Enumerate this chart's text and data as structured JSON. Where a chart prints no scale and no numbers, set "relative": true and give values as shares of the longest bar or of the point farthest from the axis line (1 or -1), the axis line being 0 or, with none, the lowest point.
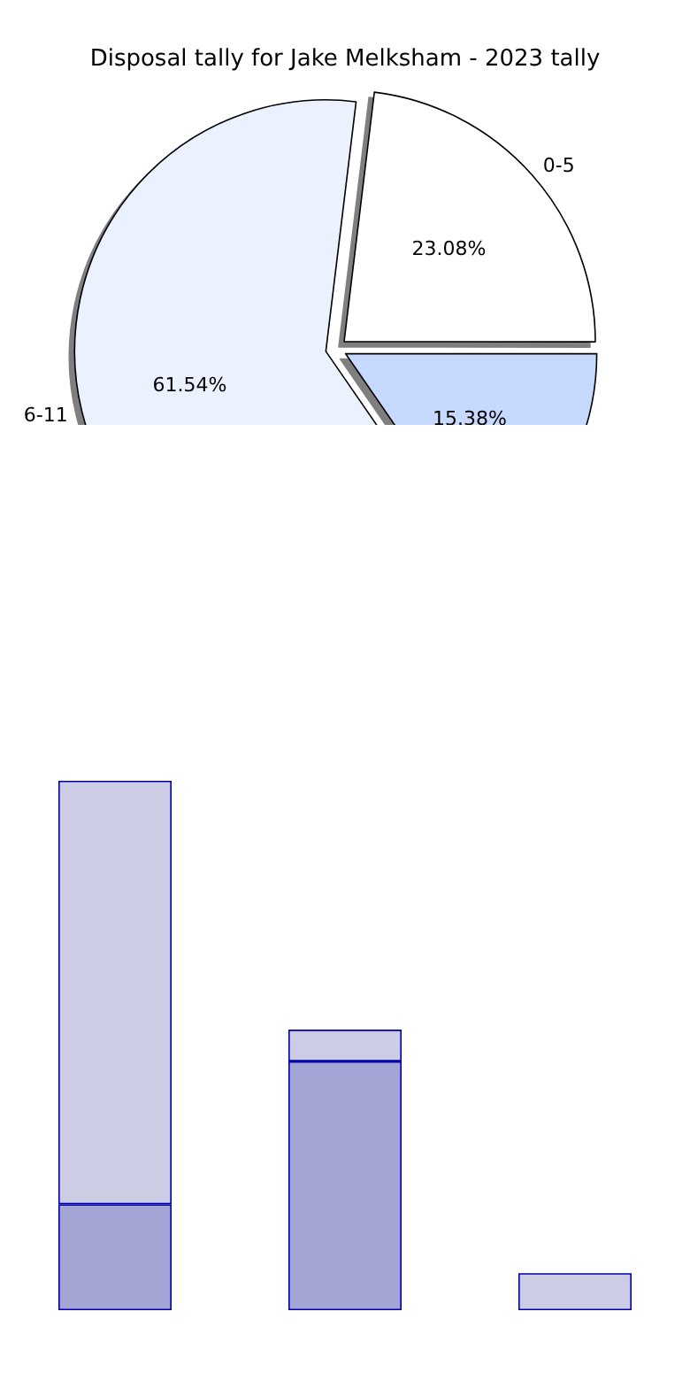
{
  "chart_data": [
    {
      "type": "pie",
      "title": "Disposal tally for Jake Melksham - 2023 tally",
      "categories": [
        "0-5",
        null,
        "6-11"
      ],
      "values": [
        23.08,
        15.38,
        61.54
      ],
      "colors": [
        "#ffffff",
        "#c6d9fe",
        "#ebf1fe"
      ],
      "value_labels": [
        "23.08%",
        "15.38%",
        "61.54%"
      ]
    },
    {
      "type": "bar",
      "relative": true,
      "stacked": true,
      "categories": [
        null,
        null,
        null
      ],
      "series": [
        {
          "color": "#a3a5d4",
          "values": [
            0.2,
            0.47,
            0
          ]
        },
        {
          "color": "#ccccE4",
          "values": [
            0.8,
            0.06,
            0.07
          ]
        }
      ]
    }
  ]
}
